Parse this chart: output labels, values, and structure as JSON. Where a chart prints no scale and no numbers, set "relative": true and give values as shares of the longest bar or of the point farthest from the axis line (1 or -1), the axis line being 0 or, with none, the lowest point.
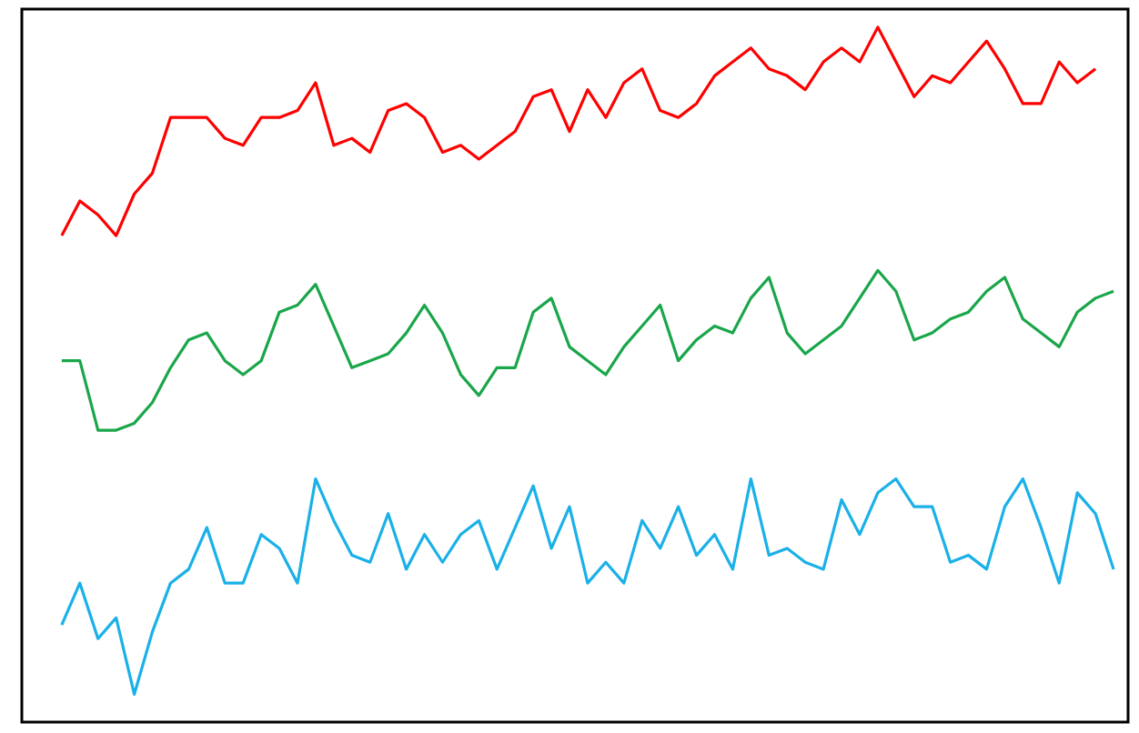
{
  "chart_data": {
    "type": "line",
    "relative": true,
    "categories": [
      null,
      null,
      null,
      null,
      null,
      null,
      null,
      null,
      null,
      null,
      null,
      null,
      null,
      null,
      null,
      null,
      null,
      null,
      null,
      null,
      null,
      null,
      null,
      null,
      null,
      null,
      null,
      null,
      null,
      null,
      null,
      null,
      null,
      null,
      null,
      null,
      null,
      null,
      null,
      null,
      null,
      null,
      null,
      null,
      null,
      null,
      null,
      null,
      null,
      null,
      null,
      null,
      null,
      null,
      null,
      null,
      null,
      null,
      null
    ],
    "series": [
      {
        "color": "#ff0000",
        "values": [
          0.7,
          0.75,
          0.73,
          0.7,
          0.76,
          0.79,
          0.87,
          0.87,
          0.87,
          0.84,
          0.83,
          0.87,
          0.87,
          0.88,
          0.92,
          0.83,
          0.84,
          0.82,
          0.88,
          0.89,
          0.87,
          0.82,
          0.83,
          0.81,
          0.83,
          0.85,
          0.9,
          0.91,
          0.85,
          0.91,
          0.87,
          0.92,
          0.94,
          0.88,
          0.87,
          0.89,
          0.93,
          0.95,
          0.97,
          0.94,
          0.93,
          0.91,
          0.95,
          0.97,
          0.95,
          1,
          0.95,
          0.9,
          0.93,
          0.92,
          0.95,
          0.98,
          0.94,
          0.89,
          0.89,
          0.95,
          0.92,
          0.94,
          null
        ]
      },
      {
        "color": "#1aa64a",
        "values": [
          0.52,
          0.52,
          0.42,
          0.42,
          0.43,
          0.46,
          0.51,
          0.55,
          0.56,
          0.52,
          0.5,
          0.52,
          0.59,
          0.6,
          0.63,
          0.57,
          0.51,
          0.52,
          0.53,
          0.56,
          0.6,
          0.56,
          0.5,
          0.47,
          0.51,
          0.51,
          0.59,
          0.61,
          0.54,
          0.52,
          0.5,
          0.54,
          0.57,
          0.6,
          0.52,
          0.55,
          0.57,
          0.56,
          0.61,
          0.64,
          0.56,
          0.53,
          0.55,
          0.57,
          0.61,
          0.65,
          0.62,
          0.55,
          0.56,
          0.58,
          0.59,
          0.62,
          0.64,
          0.58,
          0.56,
          0.54,
          0.59,
          0.61,
          0.62
        ]
      },
      {
        "color": "#1ab0e8",
        "values": [
          0.14,
          0.2,
          0.12,
          0.15,
          0.04,
          0.13,
          0.2,
          0.22,
          0.28,
          0.2,
          0.2,
          0.27,
          0.25,
          0.2,
          0.35,
          0.29,
          0.24,
          0.23,
          0.3,
          0.22,
          0.27,
          0.23,
          0.27,
          0.29,
          0.22,
          0.28,
          0.34,
          0.25,
          0.31,
          0.2,
          0.23,
          0.2,
          0.29,
          0.25,
          0.31,
          0.24,
          0.27,
          0.22,
          0.35,
          0.24,
          0.25,
          0.23,
          0.22,
          0.32,
          0.27,
          0.33,
          0.35,
          0.31,
          0.31,
          0.23,
          0.24,
          0.22,
          0.31,
          0.35,
          0.28,
          0.2,
          0.33,
          0.3,
          0.22
        ]
      }
    ]
  }
}
